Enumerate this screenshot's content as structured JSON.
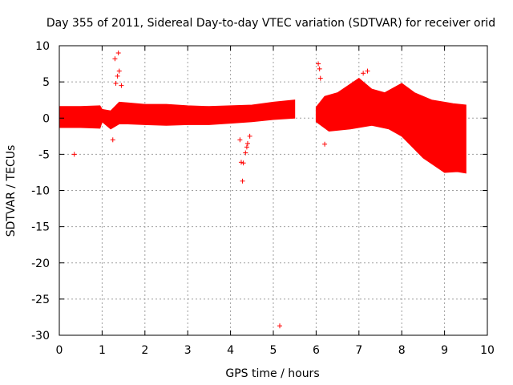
{
  "chart_data": {
    "type": "scatter",
    "title": "Day 355 of 2011, Sidereal Day-to-day VTEC variation (SDTVAR) for receiver orid",
    "xlabel": "GPS time / hours",
    "ylabel": "SDTVAR / TECUs",
    "xlim": [
      0,
      10
    ],
    "ylim": [
      -30,
      10
    ],
    "x_ticks": [
      0,
      1,
      2,
      3,
      4,
      5,
      6,
      7,
      8,
      9,
      10
    ],
    "y_ticks": [
      10,
      5,
      0,
      -5,
      -10,
      -15,
      -20,
      -25,
      -30
    ],
    "x_tick_labels": [
      "0",
      "1",
      "2",
      "3",
      "4",
      "5",
      "6",
      "7",
      "8",
      "9",
      "10"
    ],
    "y_tick_labels": [
      "10",
      "5",
      "0",
      "-5",
      "-10",
      "-15",
      "-20",
      "-25",
      "-30"
    ],
    "grid": true,
    "marker": "+",
    "color": "#ff0000",
    "series": [
      {
        "name": "SDTVAR",
        "band_upper": [
          [
            0.0,
            1.6
          ],
          [
            0.5,
            1.6
          ],
          [
            0.95,
            1.7
          ],
          [
            1.0,
            1.2
          ],
          [
            1.2,
            1.0
          ],
          [
            1.4,
            2.2
          ],
          [
            1.6,
            2.1
          ],
          [
            2.0,
            1.9
          ],
          [
            2.5,
            1.9
          ],
          [
            3.0,
            1.7
          ],
          [
            3.5,
            1.6
          ],
          [
            4.0,
            1.7
          ],
          [
            4.5,
            1.8
          ],
          [
            5.0,
            2.2
          ],
          [
            5.5,
            2.5
          ]
        ],
        "band_lower": [
          [
            0.0,
            -1.3
          ],
          [
            0.5,
            -1.3
          ],
          [
            0.95,
            -1.4
          ],
          [
            1.0,
            -0.5
          ],
          [
            1.2,
            -1.5
          ],
          [
            1.4,
            -0.8
          ],
          [
            1.6,
            -0.8
          ],
          [
            2.0,
            -0.9
          ],
          [
            2.5,
            -1.0
          ],
          [
            3.0,
            -0.9
          ],
          [
            3.5,
            -0.9
          ],
          [
            4.0,
            -0.7
          ],
          [
            4.5,
            -0.5
          ],
          [
            5.0,
            -0.2
          ],
          [
            5.5,
            0.0
          ]
        ],
        "band2_upper": [
          [
            6.0,
            1.5
          ],
          [
            6.2,
            3.0
          ],
          [
            6.5,
            3.5
          ],
          [
            7.0,
            5.5
          ],
          [
            7.3,
            4.0
          ],
          [
            7.6,
            3.5
          ],
          [
            8.0,
            4.8
          ],
          [
            8.3,
            3.5
          ],
          [
            8.7,
            2.5
          ],
          [
            9.2,
            2.0
          ],
          [
            9.5,
            1.8
          ]
        ],
        "band2_lower": [
          [
            6.0,
            -0.5
          ],
          [
            6.3,
            -1.8
          ],
          [
            6.8,
            -1.5
          ],
          [
            7.3,
            -1.0
          ],
          [
            7.7,
            -1.5
          ],
          [
            8.0,
            -2.5
          ],
          [
            8.5,
            -5.5
          ],
          [
            9.0,
            -7.5
          ],
          [
            9.3,
            -7.4
          ],
          [
            9.5,
            -7.6
          ]
        ],
        "outliers": [
          [
            0.35,
            -5.0
          ],
          [
            1.3,
            8.2
          ],
          [
            1.38,
            9.0
          ],
          [
            1.4,
            6.5
          ],
          [
            1.32,
            4.8
          ],
          [
            1.45,
            4.5
          ],
          [
            1.25,
            -3.0
          ],
          [
            4.22,
            -3.0
          ],
          [
            4.3,
            -6.2
          ],
          [
            4.25,
            -6.1
          ],
          [
            4.28,
            -8.7
          ],
          [
            4.35,
            -4.8
          ],
          [
            4.4,
            -3.5
          ],
          [
            5.15,
            -28.7
          ],
          [
            6.05,
            7.5
          ],
          [
            6.08,
            6.8
          ],
          [
            6.2,
            -3.6
          ],
          [
            7.1,
            6.2
          ],
          [
            7.2,
            6.5
          ],
          [
            6.1,
            5.5
          ],
          [
            1.36,
            5.8
          ],
          [
            4.45,
            -2.5
          ],
          [
            4.38,
            -4.0
          ]
        ]
      }
    ]
  }
}
